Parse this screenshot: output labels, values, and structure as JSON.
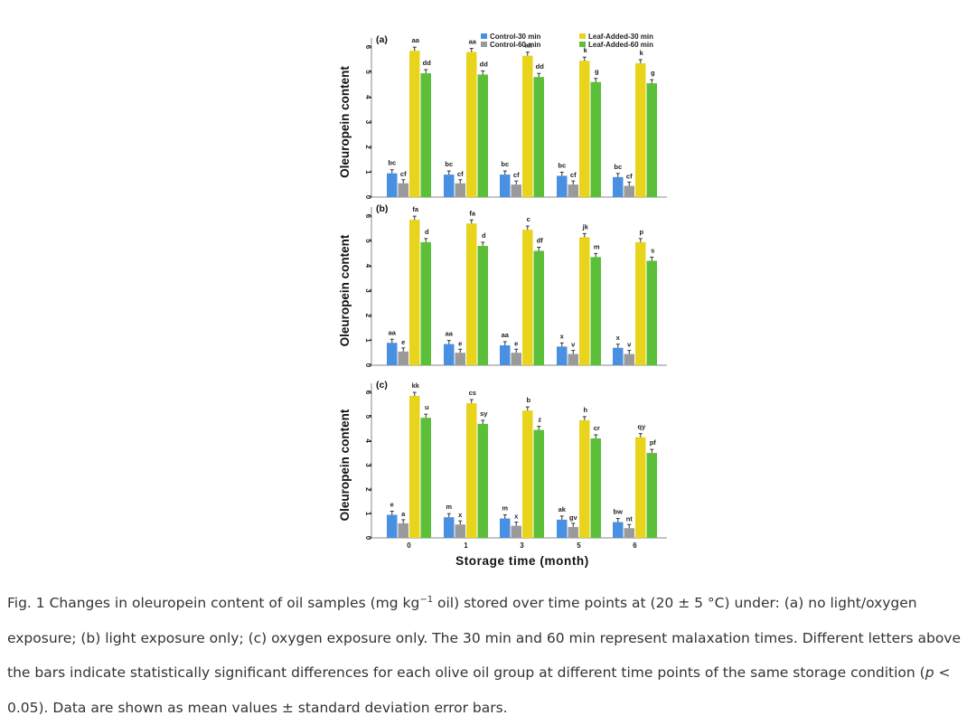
{
  "legend": [
    {
      "label": "Control-30 min",
      "color": "#4a90e2"
    },
    {
      "label": "Control-60 min",
      "color": "#9a9a9a"
    },
    {
      "label": "Leaf-Added-30 min",
      "color": "#e8d41b"
    },
    {
      "label": "Leaf-Added-60 min",
      "color": "#5cbf3a"
    }
  ],
  "chart_data": [
    {
      "type": "bar",
      "panel_label": "(a)",
      "ylabel": "Oleuropein content",
      "xlabel": "",
      "ylim": [
        0,
        6
      ],
      "yticks": [
        "0",
        "1",
        "2",
        "3",
        "4",
        "5",
        "6"
      ],
      "categories": [
        "0",
        "1",
        "3",
        "5",
        "6"
      ],
      "series": [
        {
          "name": "Control-30 min",
          "values": [
            0.95,
            0.9,
            0.9,
            0.85,
            0.8
          ],
          "letters": [
            "bc",
            "bc",
            "bc",
            "bc",
            "bc"
          ]
        },
        {
          "name": "Control-60 min",
          "values": [
            0.55,
            0.55,
            0.5,
            0.5,
            0.45
          ],
          "letters": [
            "cf",
            "cf",
            "cf",
            "cf",
            "cf"
          ]
        },
        {
          "name": "Leaf-Added-30 min",
          "values": [
            5.85,
            5.8,
            5.65,
            5.45,
            5.35
          ],
          "letters": [
            "aa",
            "aa",
            "aa",
            "k",
            "k"
          ]
        },
        {
          "name": "Leaf-Added-60 min",
          "values": [
            4.95,
            4.9,
            4.8,
            4.6,
            4.55
          ],
          "letters": [
            "dd",
            "dd",
            "dd",
            "g",
            "g"
          ]
        }
      ]
    },
    {
      "type": "bar",
      "panel_label": "(b)",
      "ylabel": "Oleuropein content",
      "xlabel": "",
      "ylim": [
        0,
        6
      ],
      "yticks": [
        "0",
        "1",
        "2",
        "3",
        "4",
        "5",
        "6"
      ],
      "categories": [
        "0",
        "1",
        "3",
        "5",
        "6"
      ],
      "series": [
        {
          "name": "Control-30 min",
          "values": [
            0.9,
            0.85,
            0.8,
            0.75,
            0.7
          ],
          "letters": [
            "aa",
            "aa",
            "aa",
            "x",
            "x"
          ]
        },
        {
          "name": "Control-60 min",
          "values": [
            0.55,
            0.5,
            0.5,
            0.45,
            0.45
          ],
          "letters": [
            "e",
            "e",
            "e",
            "v",
            "v"
          ]
        },
        {
          "name": "Leaf-Added-30 min",
          "values": [
            5.85,
            5.7,
            5.45,
            5.15,
            4.95
          ],
          "letters": [
            "fa",
            "fa",
            "c",
            "jk",
            "p"
          ]
        },
        {
          "name": "Leaf-Added-60 min",
          "values": [
            4.95,
            4.8,
            4.6,
            4.35,
            4.2
          ],
          "letters": [
            "d",
            "d",
            "df",
            "m",
            "s"
          ]
        }
      ]
    },
    {
      "type": "bar",
      "panel_label": "(c)",
      "ylabel": "Oleuropein content",
      "xlabel": "Storage time (month)",
      "ylim": [
        0,
        6
      ],
      "yticks": [
        "0",
        "1",
        "2",
        "3",
        "4",
        "5",
        "6"
      ],
      "categories": [
        "0",
        "1",
        "3",
        "5",
        "6"
      ],
      "series": [
        {
          "name": "Control-30 min",
          "values": [
            0.95,
            0.85,
            0.8,
            0.75,
            0.65
          ],
          "letters": [
            "e",
            "m",
            "m",
            "ak",
            "bw"
          ]
        },
        {
          "name": "Control-60 min",
          "values": [
            0.6,
            0.55,
            0.5,
            0.45,
            0.4
          ],
          "letters": [
            "a",
            "x",
            "x",
            "gv",
            "nt"
          ]
        },
        {
          "name": "Leaf-Added-30 min",
          "values": [
            5.85,
            5.55,
            5.25,
            4.85,
            4.15
          ],
          "letters": [
            "kk",
            "cs",
            "b",
            "h",
            "qy"
          ]
        },
        {
          "name": "Leaf-Added-60 min",
          "values": [
            4.95,
            4.7,
            4.45,
            4.1,
            3.5
          ],
          "letters": [
            "u",
            "sy",
            "z",
            "cr",
            "pf"
          ]
        }
      ]
    }
  ],
  "caption": {
    "p1": "Fig. 1 Changes in oleuropein content of oil samples (mg kg",
    "p1_sup": "−1",
    "p2": " oil) stored over time points at (20 ± 5 °C) under: (a) no light/oxygen exposure; (b) light exposure only; (c) oxygen exposure only. The 30 min and 60 min represent malaxation times. Different letters above the bars indicate statistically significant differences for each olive oil group at different time points of the same storage condition (",
    "p_symbol": "p",
    "p3": " < 0.05). Data are shown as mean values ± standard deviation error bars."
  }
}
